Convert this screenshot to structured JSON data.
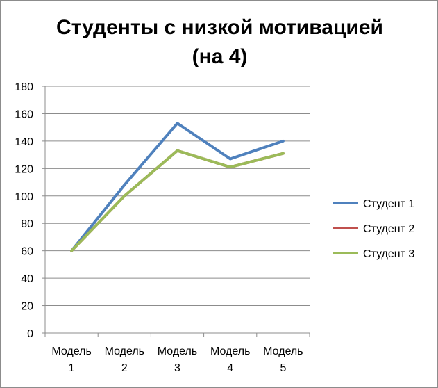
{
  "chart_data": {
    "type": "line",
    "title_lines": [
      "Студенты с низкой мотивацией",
      "(на 4)"
    ],
    "categories": [
      [
        "Модель",
        "1"
      ],
      [
        "Модель",
        "2"
      ],
      [
        "Модель",
        "3"
      ],
      [
        "Модель",
        "4"
      ],
      [
        "Модель",
        "5"
      ]
    ],
    "ylim": [
      0,
      180
    ],
    "yticks": [
      0,
      20,
      40,
      60,
      80,
      100,
      120,
      140,
      160,
      180
    ],
    "grid": true,
    "legend_position": "right",
    "series": [
      {
        "name": "Студент 1",
        "color": "#4f81bd",
        "values": [
          60,
          108,
          153,
          127,
          140
        ]
      },
      {
        "name": "Студент 2",
        "color": "#c0504d",
        "values": [
          60,
          100,
          133,
          121,
          131
        ]
      },
      {
        "name": "Студент 3",
        "color": "#9bbb59",
        "values": [
          60,
          100,
          133,
          121,
          131
        ]
      }
    ]
  }
}
